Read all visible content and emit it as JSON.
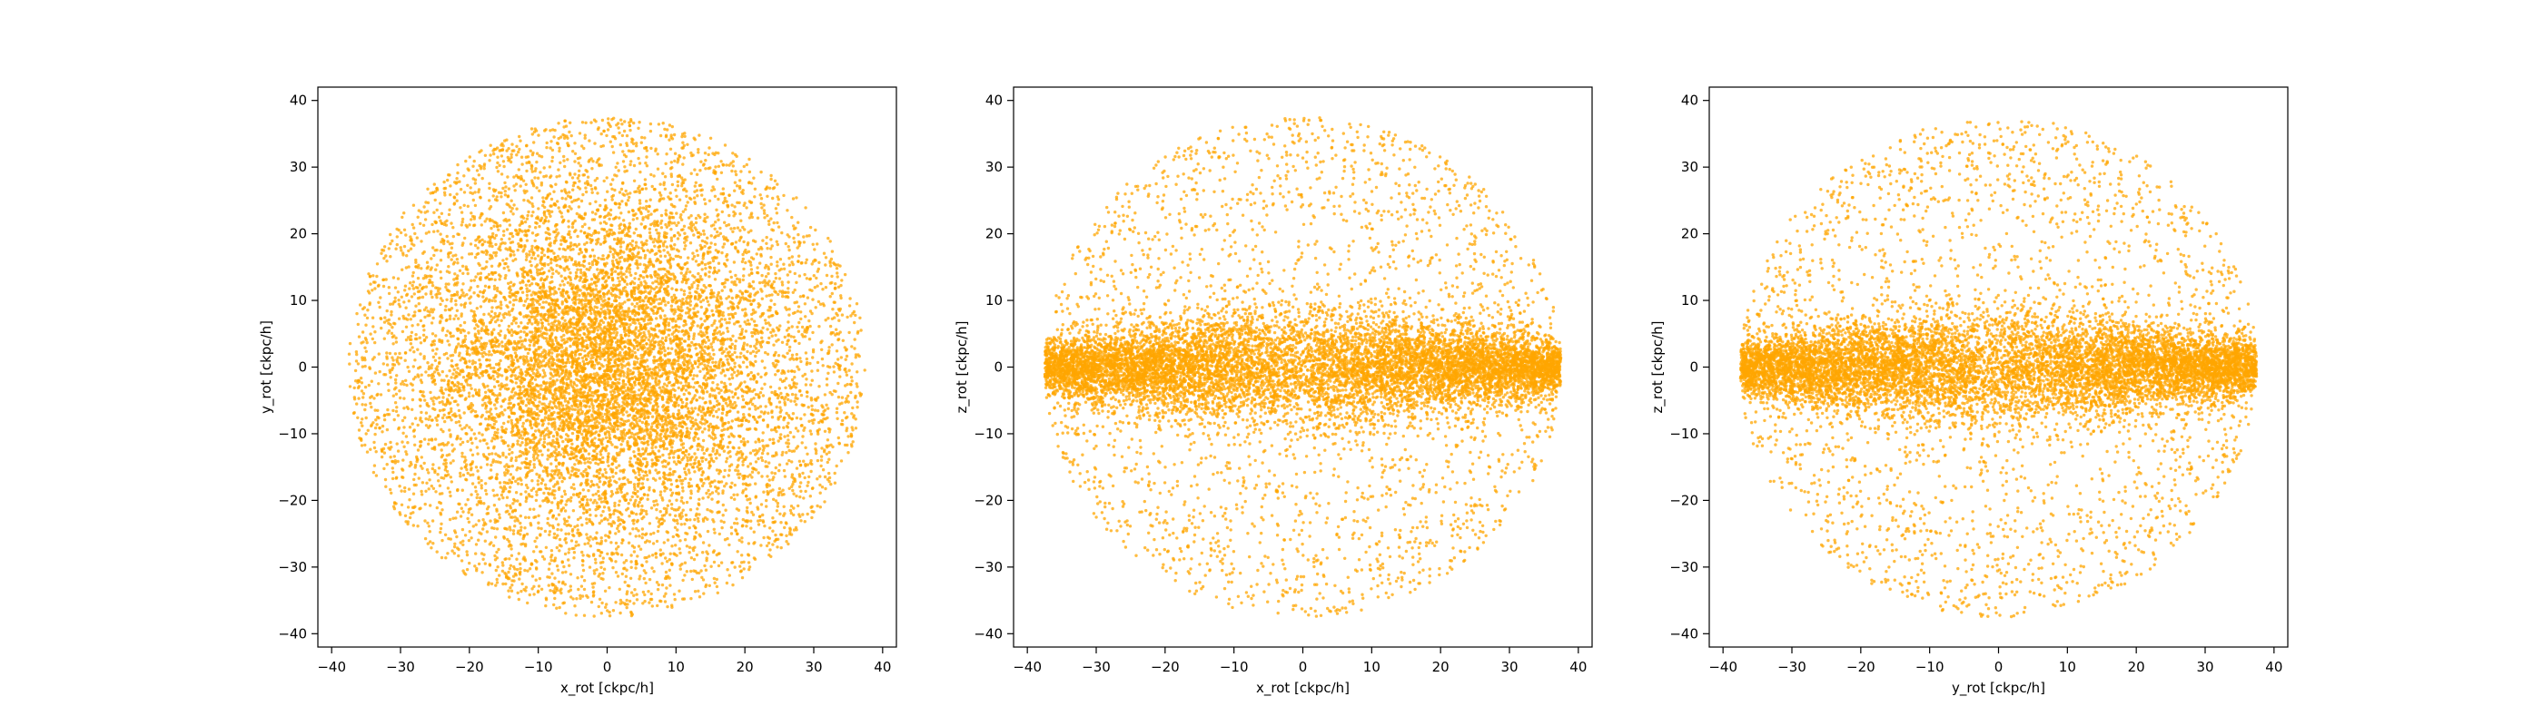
{
  "chart_data": [
    {
      "type": "scatter",
      "title": "",
      "xlabel": "x_rot [ckpc/h]",
      "ylabel": "y_rot [ckpc/h]",
      "xlim": [
        -42,
        42
      ],
      "ylim": [
        -42,
        42
      ],
      "xticks": [
        -40,
        -30,
        -20,
        -10,
        0,
        10,
        20,
        30,
        40
      ],
      "yticks": [
        -40,
        -30,
        -20,
        -10,
        0,
        10,
        20,
        30,
        40
      ],
      "grid": false,
      "legend": "none",
      "color": "#FFA500",
      "distribution": {
        "shape": "face-on disk",
        "radius": 37.5,
        "x_scale": 12,
        "y_scale": 12
      }
    },
    {
      "type": "scatter",
      "title": "",
      "xlabel": "x_rot [ckpc/h]",
      "ylabel": "z_rot [ckpc/h]",
      "xlim": [
        -42,
        42
      ],
      "ylim": [
        -42,
        42
      ],
      "xticks": [
        -40,
        -30,
        -20,
        -10,
        0,
        10,
        20,
        30,
        40
      ],
      "yticks": [
        -40,
        -30,
        -20,
        -10,
        0,
        10,
        20,
        30,
        40
      ],
      "grid": false,
      "legend": "none",
      "color": "#FFA500",
      "distribution": {
        "shape": "edge-on disk",
        "radius": 37.5,
        "x_scale": 14,
        "y_scale": 5
      }
    },
    {
      "type": "scatter",
      "title": "",
      "xlabel": "y_rot [ckpc/h]",
      "ylabel": "z_rot [ckpc/h]",
      "xlim": [
        -42,
        42
      ],
      "ylim": [
        -42,
        42
      ],
      "xticks": [
        -40,
        -30,
        -20,
        -10,
        0,
        10,
        20,
        30,
        40
      ],
      "yticks": [
        -40,
        -30,
        -20,
        -10,
        0,
        10,
        20,
        30,
        40
      ],
      "grid": false,
      "legend": "none",
      "color": "#FFA500",
      "distribution": {
        "shape": "edge-on disk",
        "radius": 37.5,
        "x_scale": 14,
        "y_scale": 5
      }
    }
  ]
}
